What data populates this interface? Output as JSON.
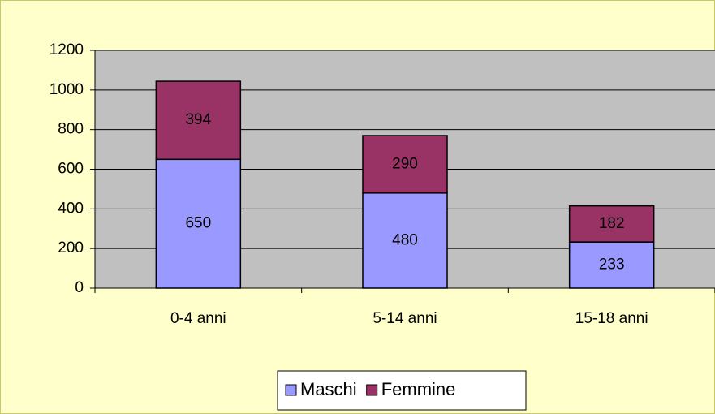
{
  "chart_data": {
    "type": "bar",
    "stacked": true,
    "categories": [
      "0-4 anni",
      "5-14 anni",
      "15-18 anni"
    ],
    "series": [
      {
        "name": "Maschi",
        "color": "#9999ff",
        "values": [
          650,
          480,
          233
        ]
      },
      {
        "name": "Femmine",
        "color": "#993366",
        "values": [
          394,
          290,
          182
        ]
      }
    ],
    "ylim": [
      0,
      1200
    ],
    "yticks": [
      0,
      200,
      400,
      600,
      800,
      1000,
      1200
    ],
    "grid": true,
    "legend": "bottom"
  }
}
